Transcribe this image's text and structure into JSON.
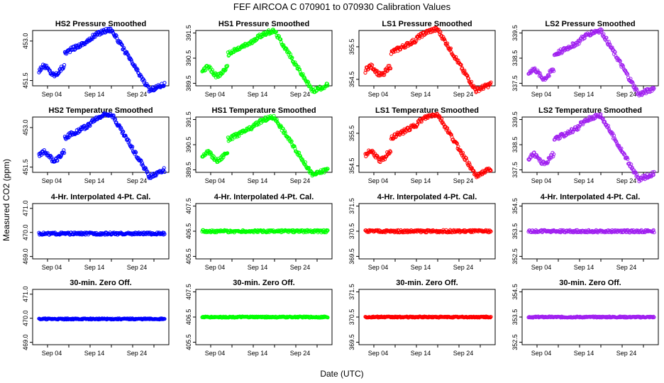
{
  "title": "FEF   AIRCOA C   070901 to 070930   Calibration Values",
  "xlabel": "Date (UTC)",
  "ylabel": "Measured CO2 (ppm)",
  "x_ticks": [
    "Sep 04",
    "Sep 14",
    "Sep 24"
  ],
  "colors": {
    "HS2": "#0000ff",
    "HS1": "#00ff00",
    "LS1": "#ff0000",
    "LS2": "#a020f0"
  },
  "chart_data": [
    {
      "type": "scatter",
      "title": "HS2 Pressure Smoothed",
      "series": "HS2",
      "ylim": [
        451.3,
        453.4
      ],
      "ticks": [
        "451.5",
        "453.0"
      ],
      "tick_values": [
        451.5,
        453.0
      ],
      "shape": "pressure",
      "center": 452.35,
      "amp": 1.35
    },
    {
      "type": "scatter",
      "title": "HS1 Pressure Smoothed",
      "series": "HS1",
      "ylim": [
        389.4,
        391.6
      ],
      "ticks": [
        "389.5",
        "390.5",
        "391.5"
      ],
      "tick_values": [
        389.5,
        390.5,
        391.5
      ],
      "shape": "pressure",
      "center": 390.45,
      "amp": 1.4
    },
    {
      "type": "scatter",
      "title": "LS1 Pressure Smoothed",
      "series": "LS1",
      "ylim": [
        354.3,
        356.0
      ],
      "ticks": [
        "354.5",
        "355.5"
      ],
      "tick_values": [
        354.5,
        355.5
      ],
      "shape": "pressure",
      "center": 355.15,
      "amp": 1.1
    },
    {
      "type": "scatter",
      "title": "LS2 Pressure Smoothed",
      "series": "LS2",
      "ylim": [
        337.4,
        339.6
      ],
      "ticks": [
        "337.5",
        "338.5",
        "339.5"
      ],
      "tick_values": [
        337.5,
        338.5,
        339.5
      ],
      "shape": "pressure",
      "center": 338.4,
      "amp": 1.5
    },
    {
      "type": "scatter",
      "title": "HS2 Temperature Smoothed",
      "series": "HS2",
      "ylim": [
        451.3,
        453.4
      ],
      "ticks": [
        "451.5",
        "453.0"
      ],
      "tick_values": [
        451.5,
        453.0
      ],
      "shape": "temperature",
      "center": 452.35,
      "amp": 1.4
    },
    {
      "type": "scatter",
      "title": "HS1 Temperature Smoothed",
      "series": "HS1",
      "ylim": [
        389.4,
        391.6
      ],
      "ticks": [
        "389.5",
        "390.5",
        "391.5"
      ],
      "tick_values": [
        389.5,
        390.5,
        391.5
      ],
      "shape": "temperature",
      "center": 390.45,
      "amp": 1.35
    },
    {
      "type": "scatter",
      "title": "LS1 Temperature Smoothed",
      "series": "LS1",
      "ylim": [
        354.3,
        356.0
      ],
      "ticks": [
        "354.5",
        "355.5"
      ],
      "tick_values": [
        354.5,
        355.5
      ],
      "shape": "temperature",
      "center": 355.15,
      "amp": 1.1
    },
    {
      "type": "scatter",
      "title": "LS2 Temperature Smoothed",
      "series": "LS2",
      "ylim": [
        337.4,
        339.6
      ],
      "ticks": [
        "337.5",
        "338.5",
        "339.5"
      ],
      "tick_values": [
        337.5,
        338.5,
        339.5
      ],
      "shape": "temperature",
      "center": 338.4,
      "amp": 1.5
    },
    {
      "type": "scatter",
      "title": "4-Hr. Interpolated 4-Pt. Cal.",
      "series": "HS2",
      "ylim": [
        468.9,
        471.2
      ],
      "ticks": [
        "469.0",
        "470.0",
        "471.0"
      ],
      "tick_values": [
        469.0,
        470.0,
        471.0
      ],
      "shape": "flat",
      "center": 469.95,
      "amp": 0.1
    },
    {
      "type": "scatter",
      "title": "4-Hr. Interpolated 4-Pt. Cal.",
      "series": "HS1",
      "ylim": [
        405.4,
        407.6
      ],
      "ticks": [
        "405.5",
        "406.5",
        "407.5"
      ],
      "tick_values": [
        405.5,
        406.5,
        407.5
      ],
      "shape": "flat",
      "center": 406.5,
      "amp": 0.1
    },
    {
      "type": "scatter",
      "title": "4-Hr. Interpolated 4-Pt. Cal.",
      "series": "LS1",
      "ylim": [
        369.4,
        371.6
      ],
      "ticks": [
        "369.5",
        "370.5",
        "371.5"
      ],
      "tick_values": [
        369.5,
        370.5,
        371.5
      ],
      "shape": "flat",
      "center": 370.5,
      "amp": 0.1
    },
    {
      "type": "scatter",
      "title": "4-Hr. Interpolated 4-Pt. Cal.",
      "series": "LS2",
      "ylim": [
        352.4,
        354.6
      ],
      "ticks": [
        "352.5",
        "353.5",
        "354.5"
      ],
      "tick_values": [
        352.5,
        353.5,
        354.5
      ],
      "shape": "flat",
      "center": 353.5,
      "amp": 0.1
    },
    {
      "type": "scatter",
      "title": "30-min. Zero Off.",
      "series": "HS2",
      "ylim": [
        468.9,
        471.2
      ],
      "ticks": [
        "469.0",
        "470.0",
        "471.0"
      ],
      "tick_values": [
        469.0,
        470.0,
        471.0
      ],
      "shape": "flat",
      "center": 469.97,
      "amp": 0.05
    },
    {
      "type": "scatter",
      "title": "30-min. Zero Off.",
      "series": "HS1",
      "ylim": [
        405.4,
        407.6
      ],
      "ticks": [
        "405.5",
        "406.5",
        "407.5"
      ],
      "tick_values": [
        405.5,
        406.5,
        407.5
      ],
      "shape": "flat",
      "center": 406.5,
      "amp": 0.05
    },
    {
      "type": "scatter",
      "title": "30-min. Zero Off.",
      "series": "LS1",
      "ylim": [
        369.4,
        371.6
      ],
      "ticks": [
        "369.5",
        "370.5",
        "371.5"
      ],
      "tick_values": [
        369.5,
        370.5,
        371.5
      ],
      "shape": "flat",
      "center": 370.5,
      "amp": 0.05
    },
    {
      "type": "scatter",
      "title": "30-min. Zero Off.",
      "series": "LS2",
      "ylim": [
        352.4,
        354.6
      ],
      "ticks": [
        "352.5",
        "353.5",
        "354.5"
      ],
      "tick_values": [
        352.5,
        353.5,
        354.5
      ],
      "shape": "flat",
      "center": 353.5,
      "amp": 0.05
    }
  ]
}
